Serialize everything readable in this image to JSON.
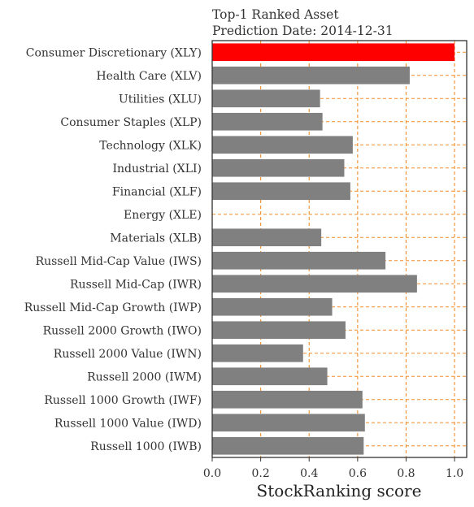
{
  "chart_data": {
    "type": "bar",
    "orientation": "horizontal",
    "title_lines": [
      "Top-1 Ranked Asset",
      "Prediction Date: 2014-12-31"
    ],
    "xlabel": "StockRanking score",
    "ylabel": "",
    "xlim": [
      0.0,
      1.05
    ],
    "xticks": [
      0.0,
      0.2,
      0.4,
      0.6,
      0.8,
      1.0
    ],
    "xtick_labels": [
      "0.0",
      "0.2",
      "0.4",
      "0.6",
      "0.8",
      "1.0"
    ],
    "grid": true,
    "grid_style": "dashed",
    "grid_color": "#f28e2b",
    "bar_color": "#808080",
    "highlight_color": "#ff0000",
    "highlight_index": 0,
    "categories": [
      "Consumer Discretionary (XLY)",
      "Health Care (XLV)",
      "Utilities (XLU)",
      "Consumer Staples (XLP)",
      "Technology (XLK)",
      "Industrial (XLI)",
      "Financial (XLF)",
      "Energy (XLE)",
      "Materials (XLB)",
      "Russell Mid-Cap Value (IWS)",
      "Russell Mid-Cap (IWR)",
      "Russell Mid-Cap Growth (IWP)",
      "Russell 2000 Growth (IWO)",
      "Russell 2000 Value (IWN)",
      "Russell 2000 (IWM)",
      "Russell 1000 Growth (IWF)",
      "Russell 1000 Value (IWD)",
      "Russell 1000 (IWB)"
    ],
    "values": [
      1.0,
      0.815,
      0.445,
      0.455,
      0.58,
      0.545,
      0.57,
      0.0,
      0.45,
      0.715,
      0.845,
      0.495,
      0.55,
      0.375,
      0.475,
      0.62,
      0.63,
      0.625
    ]
  }
}
